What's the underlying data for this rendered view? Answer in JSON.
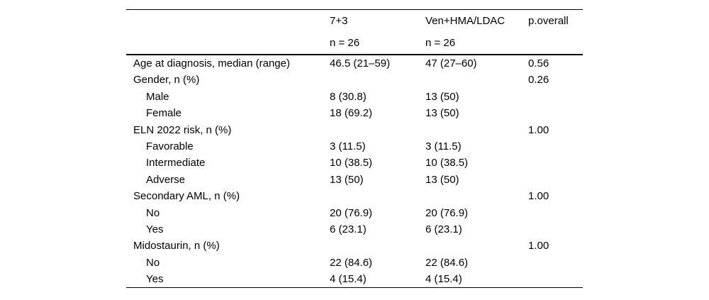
{
  "table": {
    "header": {
      "group1_name": "7+3",
      "group1_n": "n = 26",
      "group2_name": "Ven+HMA/LDAC",
      "group2_n": "n = 26",
      "p_label": "p.overall"
    },
    "rows": [
      {
        "label": "Age at diagnosis, median (range)",
        "v1": "46.5 (21–59)",
        "v2": "47 (27–60)",
        "p": "0.56"
      },
      {
        "label": "Gender, n (%)",
        "v1": "",
        "v2": "",
        "p": "0.26"
      },
      {
        "label": "Male",
        "v1": "8 (30.8)",
        "v2": "13 (50)",
        "p": ""
      },
      {
        "label": "Female",
        "v1": "18 (69.2)",
        "v2": "13 (50)",
        "p": ""
      },
      {
        "label": "ELN 2022 risk, n (%)",
        "v1": "",
        "v2": "",
        "p": "1.00"
      },
      {
        "label": "Favorable",
        "v1": "3 (11.5)",
        "v2": "3 (11.5)",
        "p": ""
      },
      {
        "label": "Intermediate",
        "v1": "10 (38.5)",
        "v2": "10 (38.5)",
        "p": ""
      },
      {
        "label": "Adverse",
        "v1": "13 (50)",
        "v2": "13 (50)",
        "p": ""
      },
      {
        "label": "Secondary AML, n (%)",
        "v1": "",
        "v2": "",
        "p": "1.00"
      },
      {
        "label": "No",
        "v1": "20 (76.9)",
        "v2": "20 (76.9)",
        "p": ""
      },
      {
        "label": "Yes",
        "v1": "6 (23.1)",
        "v2": "6 (23.1)",
        "p": ""
      },
      {
        "label": "Midostaurin, n (%)",
        "v1": "",
        "v2": "",
        "p": "1.00"
      },
      {
        "label": "No",
        "v1": "22 (84.6)",
        "v2": "22 (84.6)",
        "p": ""
      },
      {
        "label": "Yes",
        "v1": "4 (15.4)",
        "v2": "4 (15.4)",
        "p": ""
      }
    ],
    "text_color": "#000000",
    "background_color": "#ffffff"
  }
}
